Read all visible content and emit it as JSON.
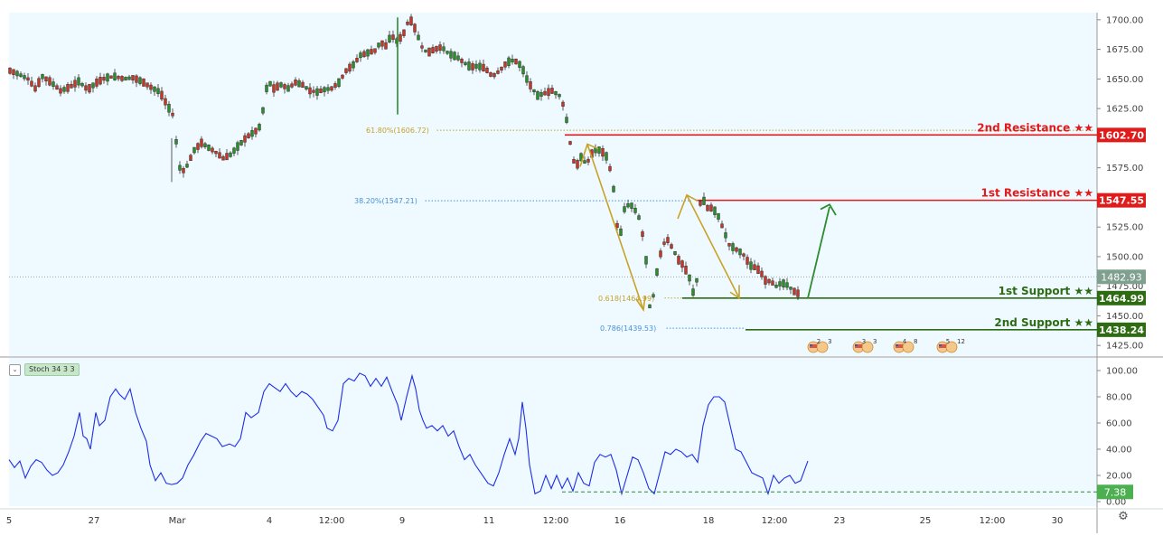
{
  "chart_data": [
    {
      "type": "candlestick",
      "price_axis": {
        "ticks": [
          "1700.00",
          "1675.00",
          "1650.00",
          "1625.00",
          "1600.00",
          "1575.00",
          "1550.00",
          "1525.00",
          "1500.00",
          "1475.00",
          "1450.00",
          "1425.00"
        ],
        "range": [
          1416,
          1706
        ]
      },
      "time_axis": {
        "labels": [
          "5",
          "27",
          "Mar",
          "4",
          "12:00",
          "9",
          "11",
          "12:00",
          "16",
          "18",
          "12:00",
          "23",
          "25",
          "12:00",
          "30"
        ]
      },
      "candles_path": [
        [
          0,
          1657
        ],
        [
          10,
          1654
        ],
        [
          20,
          1650
        ],
        [
          28,
          1642
        ],
        [
          36,
          1652
        ],
        [
          46,
          1647
        ],
        [
          56,
          1640
        ],
        [
          66,
          1643
        ],
        [
          76,
          1648
        ],
        [
          86,
          1641
        ],
        [
          96,
          1647
        ],
        [
          106,
          1651
        ],
        [
          116,
          1652
        ],
        [
          126,
          1650
        ],
        [
          136,
          1651
        ],
        [
          146,
          1648
        ],
        [
          156,
          1643
        ],
        [
          166,
          1639
        ],
        [
          174,
          1628
        ],
        [
          180,
          1620
        ],
        [
          184,
          1597
        ],
        [
          188,
          1575
        ],
        [
          193,
          1572
        ],
        [
          198,
          1580
        ],
        [
          204,
          1590
        ],
        [
          212,
          1596
        ],
        [
          220,
          1592
        ],
        [
          228,
          1588
        ],
        [
          236,
          1583
        ],
        [
          244,
          1586
        ],
        [
          252,
          1593
        ],
        [
          262,
          1601
        ],
        [
          272,
          1606
        ],
        [
          278,
          1611
        ],
        [
          282,
          1636
        ],
        [
          286,
          1648
        ],
        [
          292,
          1642
        ],
        [
          300,
          1645
        ],
        [
          308,
          1642
        ],
        [
          316,
          1647
        ],
        [
          324,
          1645
        ],
        [
          332,
          1640
        ],
        [
          340,
          1639
        ],
        [
          348,
          1641
        ],
        [
          356,
          1642
        ],
        [
          364,
          1647
        ],
        [
          372,
          1657
        ],
        [
          380,
          1662
        ],
        [
          388,
          1670
        ],
        [
          396,
          1672
        ],
        [
          404,
          1674
        ],
        [
          410,
          1681
        ],
        [
          416,
          1678
        ],
        [
          422,
          1687
        ],
        [
          428,
          1682
        ],
        [
          434,
          1686
        ],
        [
          438,
          1692
        ],
        [
          442,
          1702
        ],
        [
          448,
          1693
        ],
        [
          456,
          1677
        ],
        [
          462,
          1672
        ],
        [
          470,
          1675
        ],
        [
          478,
          1677
        ],
        [
          486,
          1671
        ],
        [
          494,
          1669
        ],
        [
          502,
          1664
        ],
        [
          510,
          1660
        ],
        [
          518,
          1661
        ],
        [
          526,
          1659
        ],
        [
          534,
          1652
        ],
        [
          542,
          1657
        ],
        [
          550,
          1664
        ],
        [
          558,
          1666
        ],
        [
          566,
          1661
        ],
        [
          572,
          1650
        ],
        [
          578,
          1642
        ],
        [
          584,
          1636
        ],
        [
          592,
          1638
        ],
        [
          600,
          1640
        ],
        [
          608,
          1636
        ],
        [
          614,
          1625
        ],
        [
          618,
          1606
        ],
        [
          622,
          1586
        ],
        [
          626,
          1575
        ],
        [
          632,
          1584
        ],
        [
          638,
          1578
        ],
        [
          644,
          1587
        ],
        [
          650,
          1591
        ],
        [
          656,
          1588
        ],
        [
          662,
          1583
        ],
        [
          668,
          1557
        ],
        [
          674,
          1511
        ],
        [
          680,
          1540
        ],
        [
          686,
          1545
        ],
        [
          692,
          1539
        ],
        [
          698,
          1530
        ],
        [
          704,
          1497
        ],
        [
          708,
          1458
        ],
        [
          712,
          1467
        ],
        [
          716,
          1487
        ],
        [
          722,
          1510
        ],
        [
          728,
          1514
        ],
        [
          734,
          1506
        ],
        [
          740,
          1497
        ],
        [
          746,
          1492
        ],
        [
          752,
          1482
        ],
        [
          756,
          1470
        ],
        [
          760,
          1480
        ],
        [
          764,
          1545
        ],
        [
          768,
          1547
        ],
        [
          772,
          1541
        ],
        [
          778,
          1541
        ],
        [
          784,
          1534
        ],
        [
          790,
          1522
        ],
        [
          796,
          1510
        ],
        [
          802,
          1507
        ],
        [
          808,
          1504
        ],
        [
          814,
          1500
        ],
        [
          818,
          1493
        ],
        [
          824,
          1491
        ],
        [
          830,
          1488
        ],
        [
          836,
          1480
        ],
        [
          842,
          1479
        ],
        [
          848,
          1475
        ],
        [
          854,
          1478
        ],
        [
          860,
          1476
        ],
        [
          866,
          1472
        ],
        [
          870,
          1469
        ],
        [
          876,
          1469
        ],
        [
          884,
          1481
        ]
      ],
      "horizontal_levels": [
        {
          "name": "2nd Resistance ★★",
          "price": 1602.7,
          "label": "1602.70",
          "color": "#e01b1b"
        },
        {
          "name": "1st Resistance ★★",
          "price": 1547.55,
          "label": "1547.55",
          "color": "#e01b1b"
        },
        {
          "name": "1st Support ★★",
          "price": 1464.99,
          "label": "1464.99",
          "color": "#2e6b12"
        },
        {
          "name": "2nd Support ★★",
          "price": 1438.24,
          "label": "1438.24",
          "color": "#2e6b12"
        }
      ],
      "current_price": {
        "value": 1482.93,
        "label": "1482.93"
      },
      "fibonacci": [
        {
          "label": "61.80%(1606.72)",
          "price": 1606.72,
          "color": "#c9a227"
        },
        {
          "label": "38.20%(1547.21)",
          "price": 1547.21,
          "color": "#4a90d9"
        },
        {
          "label": "0.618(1464.99)",
          "price": 1464.99,
          "color": "#c9a227"
        },
        {
          "label": "0.786(1439.53)",
          "price": 1439.53,
          "color": "#4a90d9"
        }
      ]
    },
    {
      "type": "line",
      "name": "Stoch 34 3 3",
      "y_axis": {
        "ticks": [
          "100.00",
          "80.00",
          "60.00",
          "40.00",
          "20.00",
          "0.00"
        ],
        "range": [
          0,
          100
        ]
      },
      "series": [
        {
          "name": "Stoch 34 3 3",
          "color": "#1f2ee6",
          "points": [
            [
              0,
              32
            ],
            [
              6,
              26
            ],
            [
              12,
              31
            ],
            [
              18,
              18
            ],
            [
              24,
              27
            ],
            [
              30,
              32
            ],
            [
              36,
              30
            ],
            [
              42,
              24
            ],
            [
              48,
              20
            ],
            [
              54,
              22
            ],
            [
              60,
              28
            ],
            [
              66,
              38
            ],
            [
              72,
              50
            ],
            [
              78,
              68
            ],
            [
              82,
              50
            ],
            [
              86,
              48
            ],
            [
              90,
              40
            ],
            [
              96,
              68
            ],
            [
              100,
              58
            ],
            [
              106,
              62
            ],
            [
              112,
              80
            ],
            [
              118,
              86
            ],
            [
              122,
              82
            ],
            [
              128,
              78
            ],
            [
              134,
              86
            ],
            [
              140,
              68
            ],
            [
              146,
              56
            ],
            [
              152,
              46
            ],
            [
              156,
              28
            ],
            [
              162,
              16
            ],
            [
              168,
              22
            ],
            [
              174,
              14
            ],
            [
              180,
              13
            ],
            [
              186,
              14
            ],
            [
              192,
              18
            ],
            [
              198,
              28
            ],
            [
              204,
              35
            ],
            [
              212,
              46
            ],
            [
              218,
              52
            ],
            [
              224,
              50
            ],
            [
              230,
              48
            ],
            [
              236,
              42
            ],
            [
              244,
              44
            ],
            [
              250,
              42
            ],
            [
              256,
              48
            ],
            [
              262,
              68
            ],
            [
              268,
              64
            ],
            [
              276,
              68
            ],
            [
              282,
              84
            ],
            [
              288,
              90
            ],
            [
              294,
              87
            ],
            [
              300,
              84
            ],
            [
              306,
              90
            ],
            [
              312,
              84
            ],
            [
              318,
              80
            ],
            [
              324,
              84
            ],
            [
              330,
              82
            ],
            [
              336,
              78
            ],
            [
              342,
              72
            ],
            [
              348,
              66
            ],
            [
              352,
              56
            ],
            [
              358,
              54
            ],
            [
              364,
              62
            ],
            [
              370,
              90
            ],
            [
              376,
              94
            ],
            [
              382,
              92
            ],
            [
              388,
              98
            ],
            [
              394,
              96
            ],
            [
              400,
              88
            ],
            [
              406,
              94
            ],
            [
              412,
              88
            ],
            [
              418,
              95
            ],
            [
              424,
              84
            ],
            [
              430,
              74
            ],
            [
              434,
              62
            ],
            [
              440,
              80
            ],
            [
              446,
              96
            ],
            [
              450,
              86
            ],
            [
              454,
              70
            ],
            [
              458,
              62
            ],
            [
              462,
              56
            ],
            [
              468,
              58
            ],
            [
              474,
              54
            ],
            [
              480,
              58
            ],
            [
              486,
              50
            ],
            [
              492,
              54
            ],
            [
              498,
              42
            ],
            [
              504,
              32
            ],
            [
              510,
              36
            ],
            [
              516,
              28
            ],
            [
              522,
              22
            ],
            [
              530,
              14
            ],
            [
              536,
              12
            ],
            [
              542,
              22
            ],
            [
              548,
              36
            ],
            [
              554,
              48
            ],
            [
              560,
              36
            ],
            [
              564,
              48
            ],
            [
              568,
              76
            ],
            [
              572,
              56
            ],
            [
              576,
              28
            ],
            [
              582,
              6
            ],
            [
              588,
              8
            ],
            [
              594,
              20
            ],
            [
              600,
              10
            ],
            [
              606,
              20
            ],
            [
              612,
              10
            ],
            [
              618,
              18
            ],
            [
              624,
              8
            ],
            [
              630,
              22
            ],
            [
              636,
              14
            ],
            [
              642,
              12
            ],
            [
              648,
              30
            ],
            [
              654,
              36
            ],
            [
              660,
              34
            ],
            [
              666,
              36
            ],
            [
              672,
              24
            ],
            [
              678,
              6
            ],
            [
              684,
              20
            ],
            [
              690,
              34
            ],
            [
              696,
              32
            ],
            [
              702,
              22
            ],
            [
              708,
              10
            ],
            [
              714,
              6
            ],
            [
              720,
              22
            ],
            [
              726,
              38
            ],
            [
              732,
              36
            ],
            [
              738,
              40
            ],
            [
              744,
              38
            ],
            [
              750,
              34
            ],
            [
              756,
              36
            ],
            [
              762,
              30
            ],
            [
              768,
              58
            ],
            [
              774,
              74
            ],
            [
              780,
              80
            ],
            [
              786,
              80
            ],
            [
              792,
              76
            ],
            [
              798,
              58
            ],
            [
              804,
              40
            ],
            [
              810,
              38
            ],
            [
              816,
              30
            ],
            [
              822,
              22
            ],
            [
              828,
              20
            ],
            [
              834,
              18
            ],
            [
              840,
              6
            ],
            [
              846,
              20
            ],
            [
              852,
              14
            ],
            [
              858,
              18
            ],
            [
              864,
              20
            ],
            [
              870,
              14
            ],
            [
              876,
              16
            ],
            [
              884,
              31
            ]
          ]
        }
      ],
      "current_value": {
        "value": 7.38,
        "label": "7.38"
      },
      "support_level": 7.38
    }
  ],
  "stoch": {
    "label": "Stoch 34 3 3",
    "toggle": "⌄"
  },
  "settings_icon": "gear-icon",
  "event_badges": [
    {
      "sup": "2",
      "sub": "3"
    },
    {
      "sup": "3",
      "sub": "3"
    },
    {
      "sup": "4",
      "sub": "8"
    },
    {
      "sup": "5",
      "sub": "12"
    }
  ]
}
